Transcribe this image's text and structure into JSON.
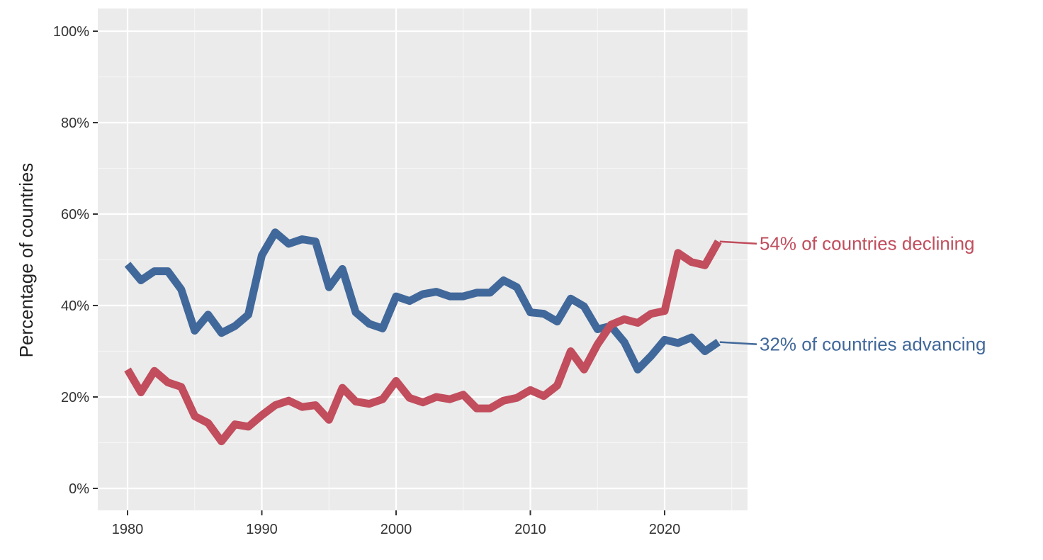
{
  "chart_data": {
    "type": "line",
    "title": "",
    "xlabel": "",
    "ylabel": "Percentage of countries",
    "x": [
      1980,
      1981,
      1982,
      1983,
      1984,
      1985,
      1986,
      1987,
      1988,
      1989,
      1990,
      1991,
      1992,
      1993,
      1994,
      1995,
      1996,
      1997,
      1998,
      1999,
      2000,
      2001,
      2002,
      2003,
      2004,
      2005,
      2006,
      2007,
      2008,
      2009,
      2010,
      2011,
      2012,
      2013,
      2014,
      2015,
      2016,
      2017,
      2018,
      2019,
      2020,
      2021,
      2022,
      2023,
      2024
    ],
    "xlim": [
      1979,
      2026
    ],
    "ylim": [
      -0.04,
      1.05
    ],
    "x_ticks": [
      1980,
      1990,
      2000,
      2010,
      2020
    ],
    "x_tick_labels": [
      "1980",
      "1990",
      "2000",
      "2010",
      "2020"
    ],
    "y_ticks": [
      0,
      0.2,
      0.4,
      0.6,
      0.8,
      1.0
    ],
    "y_tick_labels": [
      "0%",
      "20%",
      "40%",
      "60%",
      "80%",
      "100%"
    ],
    "grid": true,
    "series": [
      {
        "key": "advancing",
        "color": "#41689a",
        "values": [
          0.49,
          0.455,
          0.475,
          0.475,
          0.435,
          0.345,
          0.38,
          0.34,
          0.355,
          0.38,
          0.51,
          0.56,
          0.535,
          0.545,
          0.54,
          0.44,
          0.48,
          0.385,
          0.36,
          0.35,
          0.42,
          0.41,
          0.425,
          0.43,
          0.42,
          0.42,
          0.428,
          0.428,
          0.455,
          0.44,
          0.385,
          0.382,
          0.365,
          0.415,
          0.398,
          0.348,
          0.355,
          0.32,
          0.26,
          0.29,
          0.325,
          0.318,
          0.33,
          0.3,
          0.32
        ]
      },
      {
        "key": "declining",
        "color": "#c14d5d",
        "values": [
          0.26,
          0.21,
          0.257,
          0.232,
          0.222,
          0.158,
          0.143,
          0.103,
          0.14,
          0.135,
          0.16,
          0.182,
          0.192,
          0.178,
          0.182,
          0.15,
          0.22,
          0.19,
          0.185,
          0.195,
          0.235,
          0.198,
          0.188,
          0.2,
          0.195,
          0.205,
          0.175,
          0.175,
          0.192,
          0.198,
          0.215,
          0.202,
          0.225,
          0.3,
          0.26,
          0.315,
          0.358,
          0.37,
          0.362,
          0.382,
          0.388,
          0.515,
          0.495,
          0.488,
          0.54
        ]
      }
    ],
    "annotations": [
      {
        "series": "declining",
        "text": "54% of countries declining",
        "color": "#c14d5d"
      },
      {
        "series": "advancing",
        "text": "32% of countries advancing",
        "color": "#41689a"
      }
    ],
    "style": {
      "panel_background": "#ebebeb",
      "grid_major": "#ffffff",
      "grid_minor": "#f5f5f5"
    }
  }
}
